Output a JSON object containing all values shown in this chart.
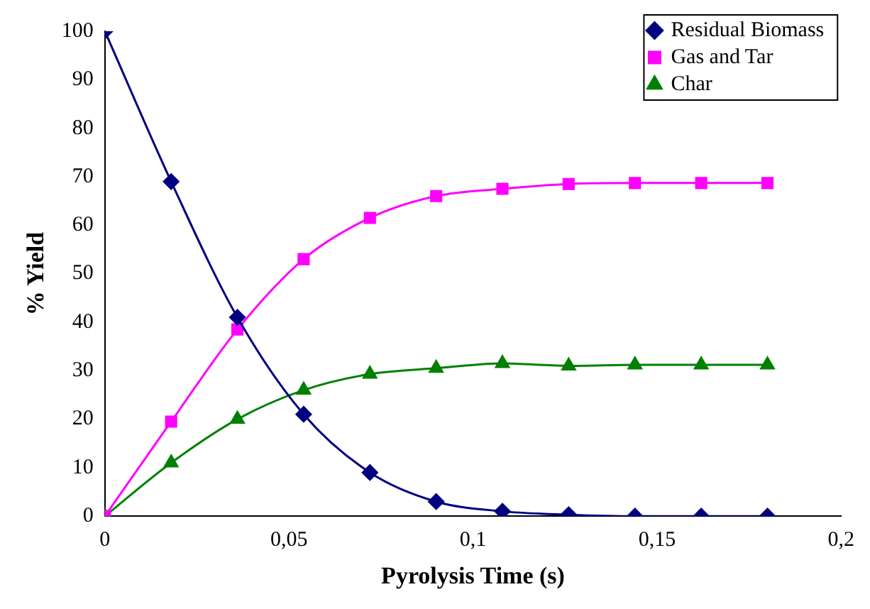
{
  "chart_data": {
    "type": "line",
    "xlabel": "Pyrolysis Time (s)",
    "ylabel": "% Yield",
    "x": [
      0,
      0.018,
      0.036,
      0.054,
      0.072,
      0.09,
      0.108,
      0.126,
      0.144,
      0.162,
      0.18
    ],
    "series": [
      {
        "name": "Residual Biomass",
        "color": "#000080",
        "marker": "diamond",
        "values": [
          100,
          69,
          41,
          21,
          9,
          3,
          1,
          0.3,
          0,
          0,
          0
        ]
      },
      {
        "name": "Gas and Tar",
        "color": "#ff00ff",
        "marker": "square",
        "values": [
          0,
          19.5,
          38.5,
          53,
          61.5,
          66,
          67.5,
          68.5,
          68.7,
          68.7,
          68.7
        ]
      },
      {
        "name": "Char",
        "color": "#008000",
        "marker": "triangle",
        "values": [
          0,
          11,
          20,
          26,
          29.3,
          30.5,
          31.5,
          31,
          31.2,
          31.2,
          31.2
        ]
      }
    ],
    "xlim": [
      0,
      0.2
    ],
    "xticks": [
      0,
      {
        "value": 0.05,
        "label": "0,05"
      },
      {
        "value": 0.1,
        "label": "0,1"
      },
      {
        "value": 0.15,
        "label": "0,15"
      },
      {
        "value": 0.2,
        "label": "0,2"
      }
    ],
    "ylim": [
      0,
      100
    ],
    "yticks": [
      0,
      10,
      20,
      30,
      40,
      50,
      60,
      70,
      80,
      90,
      100
    ],
    "grid": false,
    "legend": "top right",
    "line_style": "solid"
  }
}
